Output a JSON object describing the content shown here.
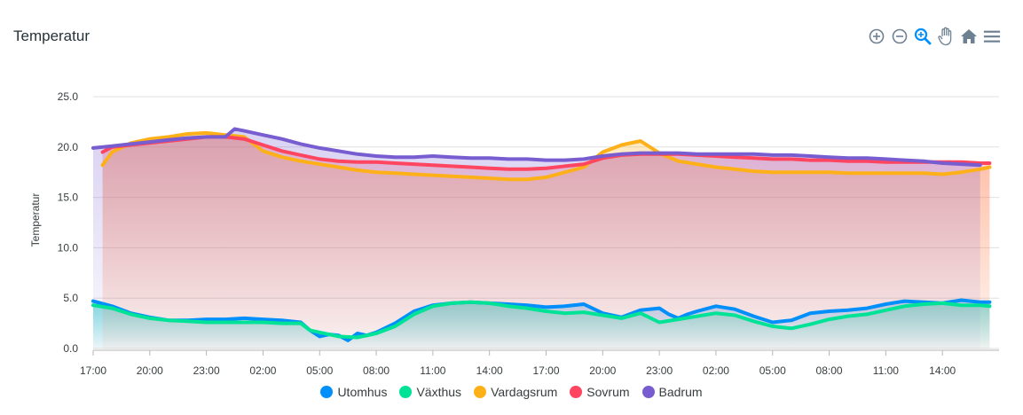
{
  "chart_title": "Temperatur",
  "toolbar": {
    "zoom_in_icon": "zoom-in-icon",
    "zoom_out_icon": "zoom-out-icon",
    "selection_zoom_icon": "selection-zoom-icon",
    "pan_icon": "pan-icon",
    "reset_icon": "home-icon",
    "menu_icon": "menu-icon"
  },
  "chart_data": {
    "type": "area",
    "title": "Temperatur",
    "ylabel": "Temperatur",
    "xlabel": "",
    "ylim": [
      0,
      25
    ],
    "y_ticks": [
      "0.0",
      "5.0",
      "10.0",
      "15.0",
      "20.0",
      "25.0"
    ],
    "x_ticks": [
      "17:00",
      "20:00",
      "23:00",
      "02:00",
      "05:00",
      "08:00",
      "11:00",
      "14:00",
      "17:00",
      "20:00",
      "23:00",
      "02:00",
      "05:00",
      "08:00",
      "11:00",
      "14:00"
    ],
    "x_unit": "hours",
    "grid": true,
    "legend_position": "bottom",
    "series": [
      {
        "name": "Utomhus",
        "color": "#008ffb",
        "x": [
          0,
          1,
          2,
          3,
          4,
          5,
          6,
          7,
          8,
          9,
          10,
          11,
          11.5,
          12,
          12.5,
          13,
          13.5,
          14,
          14.5,
          15,
          16,
          17,
          18,
          19,
          20,
          21,
          22,
          23,
          24,
          25,
          26,
          27,
          28,
          29,
          30,
          30.5,
          31,
          31.5,
          32,
          33,
          34,
          35,
          36,
          37,
          38,
          39,
          40,
          41,
          42,
          43,
          44,
          45,
          46,
          47,
          47.5
        ],
        "y": [
          4.7,
          4.2,
          3.5,
          3.1,
          2.8,
          2.8,
          2.9,
          2.9,
          3.0,
          2.9,
          2.8,
          2.6,
          1.8,
          1.2,
          1.4,
          1.3,
          0.8,
          1.5,
          1.3,
          1.6,
          2.5,
          3.7,
          4.3,
          4.5,
          4.6,
          4.5,
          4.4,
          4.3,
          4.1,
          4.2,
          4.4,
          3.5,
          3.1,
          3.8,
          4.0,
          3.4,
          3.0,
          3.4,
          3.7,
          4.2,
          3.9,
          3.2,
          2.6,
          2.8,
          3.5,
          3.7,
          3.8,
          4.0,
          4.4,
          4.7,
          4.6,
          4.5,
          4.8,
          4.6,
          4.6
        ]
      },
      {
        "name": "Växthus",
        "color": "#00e396",
        "x": [
          0,
          1,
          2,
          3,
          4,
          5,
          6,
          7,
          8,
          9,
          10,
          11,
          11.5,
          12,
          12.5,
          13,
          14,
          15,
          16,
          17,
          18,
          19,
          20,
          21,
          22,
          23,
          24,
          25,
          26,
          27,
          28,
          29,
          30,
          31,
          32,
          33,
          34,
          35,
          36,
          37,
          38,
          39,
          40,
          41,
          42,
          43,
          44,
          45,
          46,
          47,
          47.5
        ],
        "y": [
          4.3,
          4.0,
          3.4,
          3.0,
          2.8,
          2.7,
          2.6,
          2.6,
          2.6,
          2.6,
          2.5,
          2.5,
          1.8,
          1.6,
          1.4,
          1.2,
          1.1,
          1.5,
          2.2,
          3.4,
          4.2,
          4.5,
          4.6,
          4.5,
          4.2,
          4.0,
          3.7,
          3.5,
          3.6,
          3.3,
          3.0,
          3.5,
          2.6,
          2.9,
          3.2,
          3.5,
          3.3,
          2.7,
          2.2,
          2.0,
          2.4,
          2.9,
          3.2,
          3.4,
          3.8,
          4.2,
          4.4,
          4.5,
          4.3,
          4.3,
          4.2
        ]
      },
      {
        "name": "Vardagsrum",
        "color": "#feb019",
        "x": [
          0.5,
          1,
          2,
          3,
          4,
          5,
          6,
          7,
          8,
          9,
          10,
          11,
          12,
          13,
          14,
          15,
          16,
          17,
          18,
          19,
          20,
          21,
          22,
          23,
          24,
          25,
          26,
          27,
          28,
          29,
          30,
          31,
          32,
          33,
          34,
          35,
          36,
          37,
          38,
          39,
          40,
          41,
          42,
          43,
          44,
          45,
          46,
          47,
          47.5
        ],
        "y": [
          18.2,
          19.5,
          20.4,
          20.8,
          21.0,
          21.3,
          21.4,
          21.2,
          21.0,
          19.6,
          19.0,
          18.6,
          18.3,
          18.0,
          17.7,
          17.5,
          17.4,
          17.3,
          17.2,
          17.1,
          17.0,
          16.9,
          16.8,
          16.8,
          17.0,
          17.5,
          18.0,
          19.5,
          20.2,
          20.6,
          19.4,
          18.6,
          18.3,
          18.0,
          17.8,
          17.6,
          17.5,
          17.5,
          17.5,
          17.5,
          17.4,
          17.4,
          17.4,
          17.4,
          17.4,
          17.3,
          17.5,
          17.8,
          18.0
        ]
      },
      {
        "name": "Sovrum",
        "color": "#ff4560",
        "x": [
          0.5,
          1,
          2,
          3,
          4,
          5,
          6,
          7,
          8,
          9,
          10,
          11,
          12,
          13,
          14,
          15,
          16,
          17,
          18,
          19,
          20,
          21,
          22,
          23,
          24,
          25,
          26,
          27,
          28,
          29,
          30,
          31,
          32,
          33,
          34,
          35,
          36,
          37,
          38,
          39,
          40,
          41,
          42,
          43,
          44,
          45,
          46,
          47,
          47.5
        ],
        "y": [
          19.5,
          20.0,
          20.2,
          20.4,
          20.6,
          20.8,
          21.0,
          21.0,
          20.8,
          20.2,
          19.6,
          19.2,
          18.8,
          18.6,
          18.5,
          18.5,
          18.4,
          18.3,
          18.2,
          18.1,
          18.0,
          17.9,
          17.8,
          17.8,
          17.9,
          18.1,
          18.3,
          18.9,
          19.2,
          19.3,
          19.3,
          19.3,
          19.2,
          19.1,
          19.0,
          18.9,
          18.8,
          18.8,
          18.7,
          18.7,
          18.6,
          18.6,
          18.5,
          18.5,
          18.5,
          18.5,
          18.5,
          18.4,
          18.4
        ]
      },
      {
        "name": "Badrum",
        "color": "#775dd0",
        "x": [
          0,
          1,
          2,
          3,
          4,
          5,
          6,
          7,
          7.5,
          8,
          9,
          10,
          11,
          12,
          13,
          14,
          15,
          16,
          17,
          18,
          19,
          20,
          21,
          22,
          23,
          24,
          25,
          26,
          27,
          28,
          29,
          30,
          31,
          32,
          33,
          34,
          35,
          36,
          37,
          38,
          39,
          40,
          41,
          42,
          43,
          44,
          45,
          46,
          47
        ],
        "y": [
          19.9,
          20.1,
          20.3,
          20.5,
          20.7,
          20.9,
          21.0,
          21.0,
          21.8,
          21.6,
          21.2,
          20.8,
          20.3,
          19.9,
          19.6,
          19.3,
          19.1,
          19.0,
          19.0,
          19.1,
          19.0,
          18.9,
          18.9,
          18.8,
          18.8,
          18.7,
          18.7,
          18.8,
          19.1,
          19.3,
          19.4,
          19.4,
          19.4,
          19.3,
          19.3,
          19.3,
          19.3,
          19.2,
          19.2,
          19.1,
          19.0,
          18.9,
          18.9,
          18.8,
          18.7,
          18.6,
          18.4,
          18.3,
          18.2
        ]
      }
    ]
  }
}
